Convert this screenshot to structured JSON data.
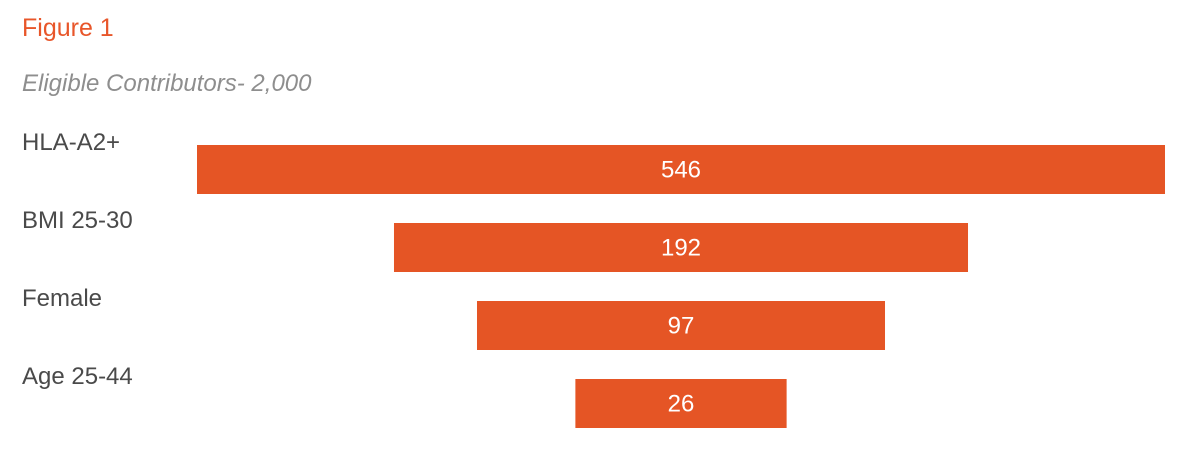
{
  "header": {
    "title": "Figure 1",
    "subtitle": "Eligible Contributors- 2,000"
  },
  "colors": {
    "title": "#e8562a",
    "subtitle": "#8e8e8e",
    "bar": "#e55525",
    "label": "#4a4a4a",
    "value_text": "#ffffff"
  },
  "chart_data": {
    "type": "bar",
    "orientation": "horizontal-centered-funnel",
    "title": "Figure 1",
    "subtitle": "Eligible Contributors- 2,000",
    "categories": [
      "HLA-A2+",
      "BMI 25-30",
      "Female",
      "Age 25-44"
    ],
    "values": [
      546,
      192,
      97,
      26
    ],
    "grid": false,
    "legend": "none"
  }
}
